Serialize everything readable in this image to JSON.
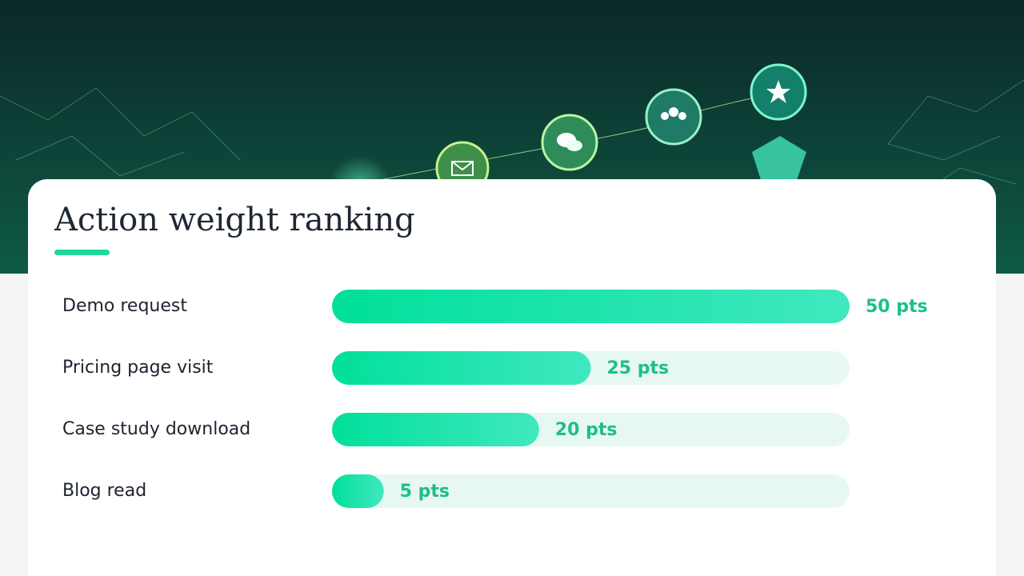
{
  "chart_data": {
    "type": "bar",
    "orientation": "horizontal",
    "title": "Action weight ranking",
    "categories": [
      "Demo request",
      "Pricing page visit",
      "Case study download",
      "Blog read"
    ],
    "values": [
      50,
      25,
      20,
      5
    ],
    "value_labels": [
      "50 pts",
      "25 pts",
      "20 pts",
      "5 pts"
    ],
    "xlim": [
      0,
      50
    ],
    "color": "#00e09a"
  }
}
